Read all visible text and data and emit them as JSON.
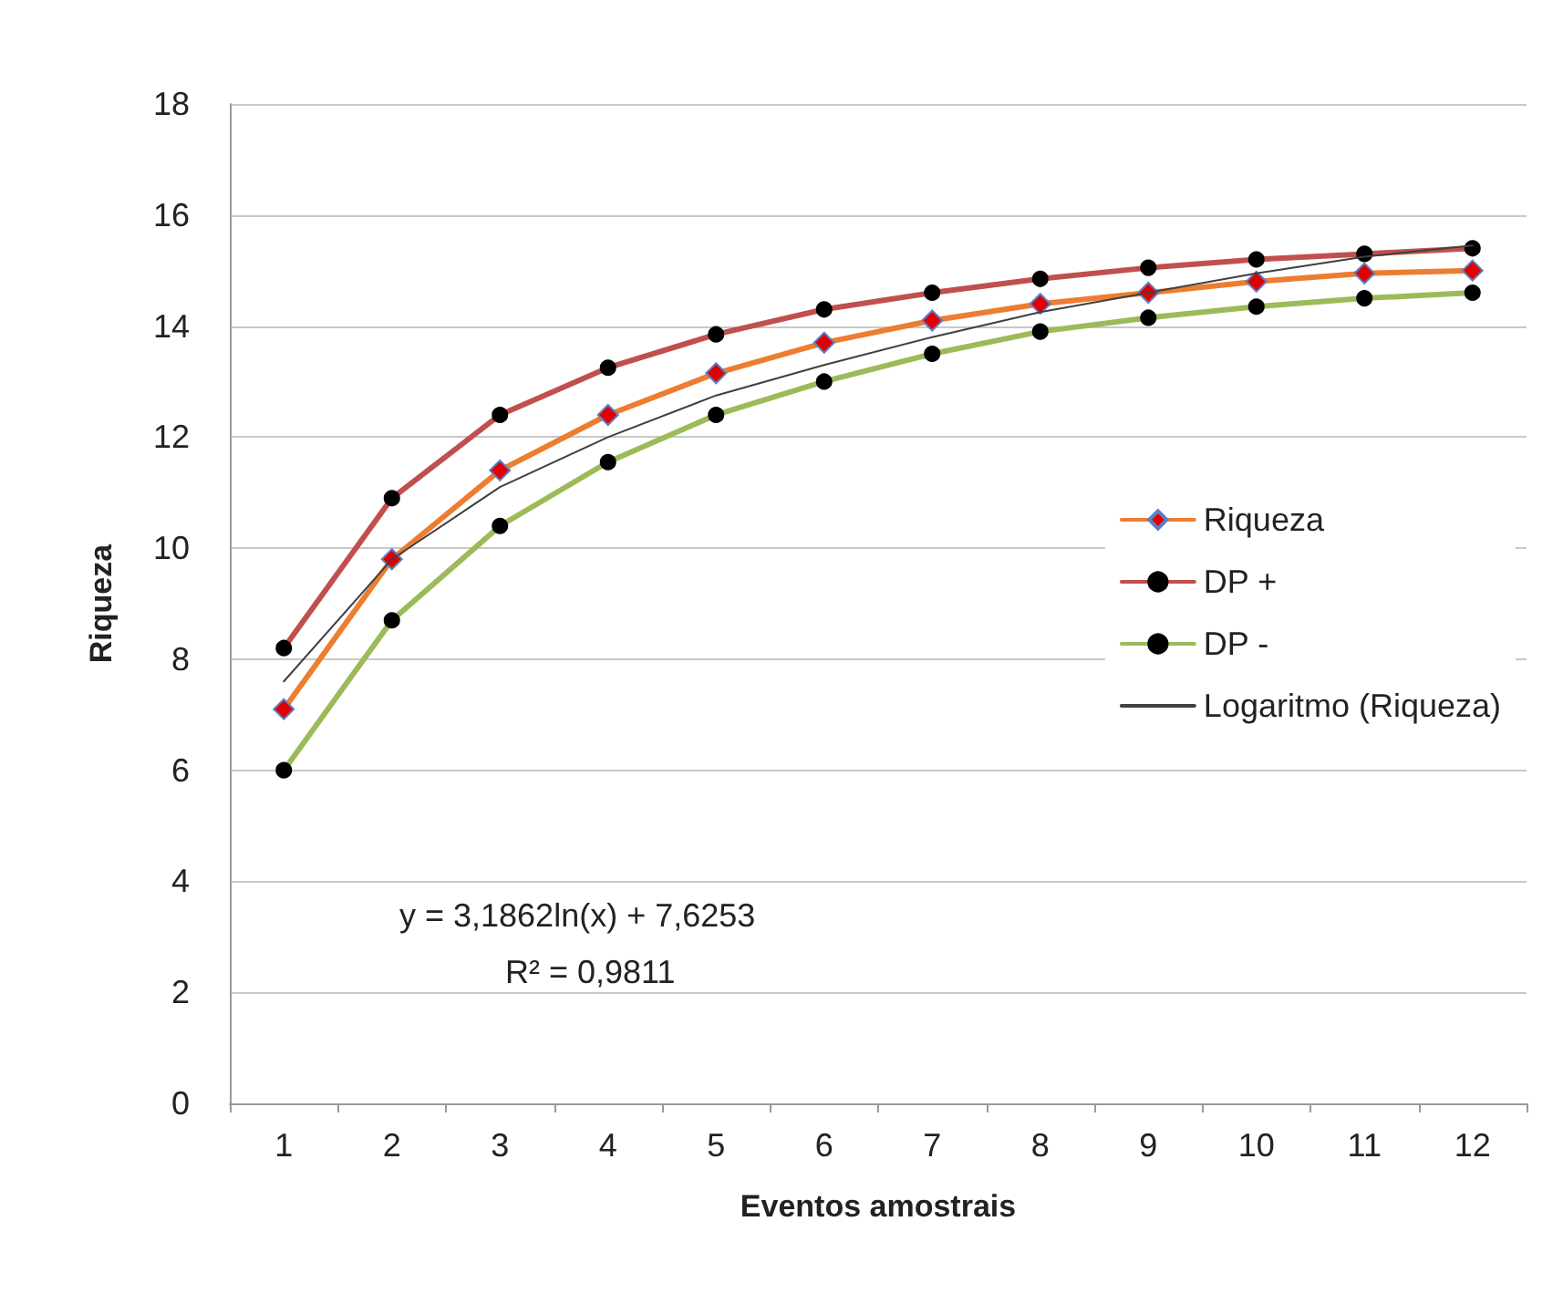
{
  "chart_data": {
    "type": "line",
    "xlabel": "Eventos amostrais",
    "ylabel": "Riqueza",
    "categories": [
      "1",
      "2",
      "3",
      "4",
      "5",
      "6",
      "7",
      "8",
      "9",
      "10",
      "11",
      "12"
    ],
    "series": [
      {
        "name": "Riqueza",
        "color": "#ed7d31",
        "marker": "diamond",
        "values": [
          7.1,
          9.8,
          11.4,
          12.4,
          13.15,
          13.7,
          14.1,
          14.4,
          14.6,
          14.8,
          14.95,
          15.0
        ]
      },
      {
        "name": "DP +",
        "color": "#c0504d",
        "marker": "circle",
        "values": [
          8.2,
          10.9,
          12.4,
          13.25,
          13.85,
          14.3,
          14.6,
          14.85,
          15.05,
          15.2,
          15.3,
          15.4
        ]
      },
      {
        "name": "DP -",
        "color": "#9bbb59",
        "marker": "circle",
        "values": [
          6.0,
          8.7,
          10.4,
          11.55,
          12.4,
          13.0,
          13.5,
          13.9,
          14.15,
          14.35,
          14.5,
          14.6
        ]
      },
      {
        "name": "Logaritmo (Riqueza)",
        "color": "#404040",
        "marker": "none",
        "values": [
          7.6,
          9.8,
          11.1,
          12.0,
          12.75,
          13.3,
          13.8,
          14.25,
          14.6,
          14.95,
          15.25,
          15.45
        ]
      }
    ],
    "ylim": [
      0,
      18
    ],
    "yticks": [
      0,
      2,
      4,
      6,
      8,
      10,
      12,
      14,
      16,
      18
    ],
    "grid": "y",
    "legend": "right",
    "annotations": [
      "y = 3,1862ln(x) + 7,6253",
      "R² = 0,9811"
    ]
  }
}
